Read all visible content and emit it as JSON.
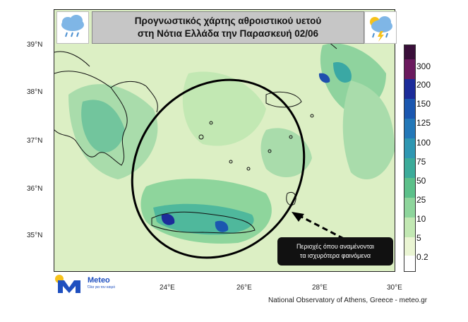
{
  "title": {
    "line1": "Προγνωστικός χάρτης αθροιστικού υετού",
    "line2": "στη Νότια Ελλάδα την Παρασκευή 02/06"
  },
  "icons": {
    "left": "rain-cloud-icon",
    "right": "thunderstorm-icon"
  },
  "axes": {
    "lat": [
      "39°N",
      "38°N",
      "37°N",
      "36°N",
      "35°N"
    ],
    "lon": [
      "24°E",
      "26°E",
      "28°E",
      "30°E"
    ]
  },
  "colorbar": {
    "levels": [
      "300",
      "200",
      "150",
      "125",
      "100",
      "75",
      "50",
      "25",
      "10",
      "5",
      "0.2"
    ],
    "colors": [
      "#3a0f3a",
      "#6b1a5e",
      "#1c2c9a",
      "#1b57b0",
      "#2478b8",
      "#2f97b2",
      "#3cab9a",
      "#5cc08a",
      "#8ed59c",
      "#c2e8b3",
      "#eaf5d3",
      "#ffffff"
    ]
  },
  "annotation": {
    "line1": "Περιοχές όπου αναμένονται",
    "line2": "τα ισχυρότερα φαινόμενα"
  },
  "logo": {
    "name": "Meteo",
    "tagline": "Όλα για τον καιρό"
  },
  "credit": "National Observatory of Athens, Greece - meteo.gr"
}
